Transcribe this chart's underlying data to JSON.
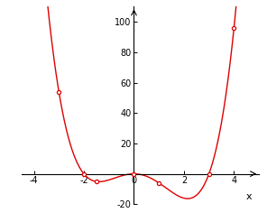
{
  "xlim": [
    -4.5,
    5.0
  ],
  "ylim": [
    -20,
    110
  ],
  "xticks": [
    -4,
    -2,
    0,
    2,
    4
  ],
  "yticks": [
    -20,
    0,
    20,
    40,
    60,
    80,
    100
  ],
  "xlabel": "x",
  "curve_color": "#dd0000",
  "marker_color": "#dd0000",
  "marked_points": [
    [
      -3,
      54
    ],
    [
      -2,
      0
    ],
    [
      -1.5,
      -5.0625
    ],
    [
      0,
      0
    ],
    [
      1,
      -6
    ],
    [
      3,
      0
    ],
    [
      4,
      96
    ]
  ],
  "background_color": "#ffffff",
  "axis_color": "#000000"
}
